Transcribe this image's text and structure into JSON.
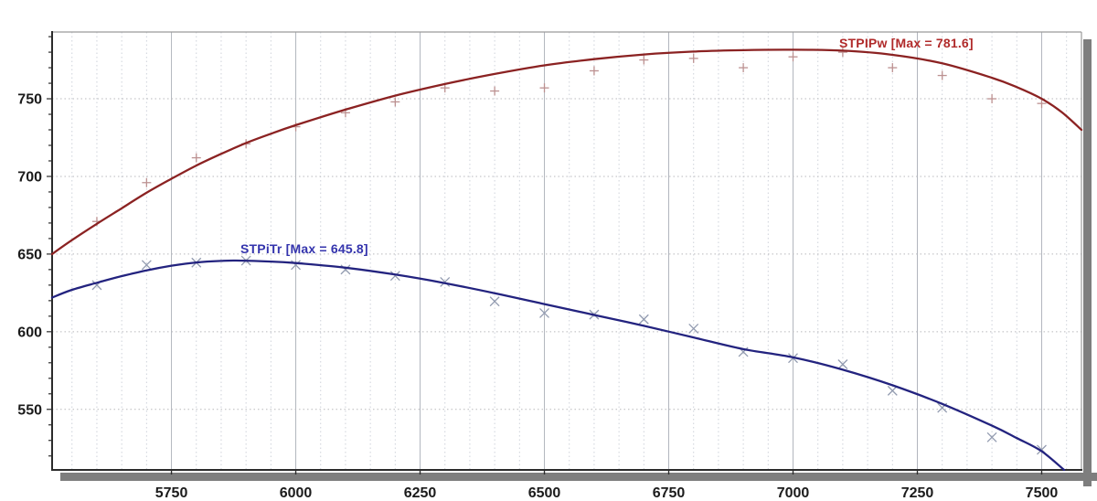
{
  "chart_data": {
    "type": "line",
    "title": "",
    "xlabel": "",
    "ylabel": "",
    "xlim": [
      5510,
      7580
    ],
    "ylim": [
      511,
      793
    ],
    "grid": true,
    "x_major_ticks": [
      5750,
      6000,
      6250,
      6500,
      6750,
      7000,
      7250,
      7500
    ],
    "x_tick_labels": [
      "5750",
      "6000",
      "6250",
      "6500",
      "6750",
      "7000",
      "7250",
      "7500"
    ],
    "x_minor_step": 50,
    "y_major_ticks": [
      550,
      600,
      650,
      700,
      750
    ],
    "y_tick_labels": [
      "550",
      "600",
      "650",
      "700",
      "750"
    ],
    "y_minor_step": 10,
    "series": [
      {
        "name": "STPIPw",
        "label": "STPIPw [Max = 781.6]",
        "max": 781.6,
        "color": "#8b2222",
        "label_color": "#b02a2a",
        "marker": "plus",
        "marker_color": "#bc9191",
        "label_anchor": {
          "x": 7095,
          "y": 784
        },
        "fit": [
          [
            5510,
            650
          ],
          [
            5550,
            659
          ],
          [
            5600,
            669.5
          ],
          [
            5650,
            679.5
          ],
          [
            5700,
            689.5
          ],
          [
            5750,
            698.5
          ],
          [
            5800,
            707
          ],
          [
            5850,
            714.5
          ],
          [
            5900,
            721.5
          ],
          [
            5950,
            727.5
          ],
          [
            6000,
            733
          ],
          [
            6100,
            743
          ],
          [
            6200,
            752
          ],
          [
            6300,
            759.5
          ],
          [
            6400,
            766
          ],
          [
            6500,
            771.5
          ],
          [
            6600,
            775.5
          ],
          [
            6700,
            778.5
          ],
          [
            6800,
            780.4
          ],
          [
            6900,
            781.3
          ],
          [
            7000,
            781.6
          ],
          [
            7100,
            781
          ],
          [
            7200,
            778.3
          ],
          [
            7300,
            772.8
          ],
          [
            7400,
            763.5
          ],
          [
            7450,
            757.5
          ],
          [
            7500,
            750
          ],
          [
            7540,
            741.5
          ],
          [
            7580,
            730
          ]
        ],
        "points": [
          [
            5600,
            671
          ],
          [
            5700,
            696
          ],
          [
            5800,
            712
          ],
          [
            5900,
            721
          ],
          [
            6000,
            732
          ],
          [
            6100,
            741
          ],
          [
            6200,
            748
          ],
          [
            6300,
            757
          ],
          [
            6400,
            755
          ],
          [
            6500,
            757
          ],
          [
            6600,
            768
          ],
          [
            6700,
            775
          ],
          [
            6800,
            776
          ],
          [
            6900,
            770
          ],
          [
            7000,
            777
          ],
          [
            7100,
            780
          ],
          [
            7200,
            770
          ],
          [
            7300,
            765
          ],
          [
            7400,
            750
          ],
          [
            7500,
            747
          ]
        ]
      },
      {
        "name": "STPiTr",
        "label": "STPiTr [Max = 645.8]",
        "max": 645.8,
        "color": "#23237f",
        "label_color": "#3434ad",
        "marker": "x",
        "marker_color": "#929bb0",
        "label_anchor": {
          "x": 5893,
          "y": 649.5
        },
        "fit": [
          [
            5510,
            622
          ],
          [
            5550,
            627
          ],
          [
            5600,
            631.5
          ],
          [
            5650,
            635.8
          ],
          [
            5700,
            639.5
          ],
          [
            5750,
            642.5
          ],
          [
            5800,
            644.6
          ],
          [
            5850,
            645.6
          ],
          [
            5880,
            645.8
          ],
          [
            5950,
            645.2
          ],
          [
            6000,
            644.2
          ],
          [
            6100,
            641.2
          ],
          [
            6200,
            636.8
          ],
          [
            6300,
            631.3
          ],
          [
            6400,
            624.8
          ],
          [
            6500,
            617.8
          ],
          [
            6600,
            610.8
          ],
          [
            6700,
            603.8
          ],
          [
            6800,
            596.3
          ],
          [
            6900,
            588.8
          ],
          [
            7000,
            583.5
          ],
          [
            7100,
            575.5
          ],
          [
            7200,
            565.5
          ],
          [
            7300,
            553.5
          ],
          [
            7400,
            539.5
          ],
          [
            7450,
            531.5
          ],
          [
            7500,
            523
          ],
          [
            7545,
            511
          ]
        ],
        "points": [
          [
            5600,
            630
          ],
          [
            5700,
            643
          ],
          [
            5800,
            644.5
          ],
          [
            5900,
            645.8
          ],
          [
            6000,
            643
          ],
          [
            6100,
            640
          ],
          [
            6200,
            636
          ],
          [
            6300,
            632
          ],
          [
            6400,
            619.5
          ],
          [
            6500,
            612
          ],
          [
            6600,
            611
          ],
          [
            6700,
            608
          ],
          [
            6800,
            602
          ],
          [
            6900,
            587
          ],
          [
            7000,
            583
          ],
          [
            7100,
            579
          ],
          [
            7200,
            562
          ],
          [
            7300,
            551
          ],
          [
            7400,
            532
          ],
          [
            7500,
            524
          ]
        ]
      }
    ],
    "legend_position": "on-curve"
  },
  "colors": {
    "background": "#ffffff",
    "grid_minor": "#ced2da",
    "grid_major": "#b2b6be",
    "grid_horizontal": "#b8b8bc",
    "frame_dark": "#2b2b2b",
    "frame_light": "#9a9a9a",
    "shadow": "#7e7e7e",
    "tick_text": "#1b1b1b"
  }
}
